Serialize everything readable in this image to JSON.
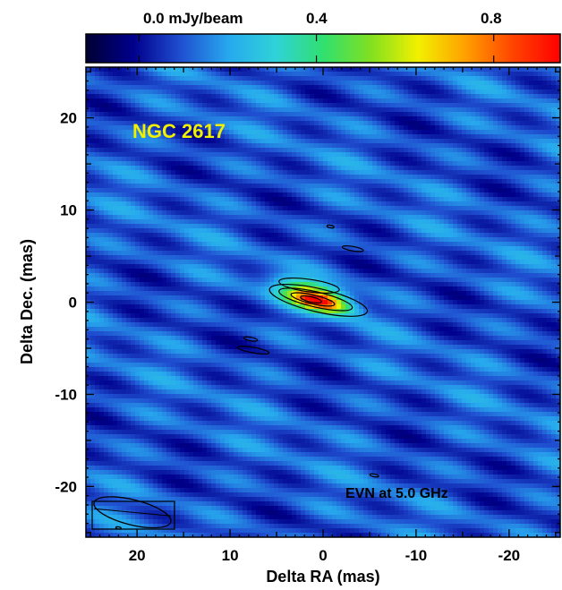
{
  "chart_data": {
    "type": "heatmap",
    "colorbar": {
      "label": "0.0 mJy/beam",
      "tick_labels": [
        "0.4",
        "0.8"
      ],
      "ticks": [
        0.0,
        0.4,
        0.8
      ],
      "range": [
        -0.12,
        0.95
      ],
      "colormap": [
        "#000033",
        "#00008c",
        "#1f4fd0",
        "#27a8ee",
        "#2fd2d8",
        "#30e070",
        "#80e020",
        "#f2f000",
        "#ffa000",
        "#ff4400",
        "#ff0000"
      ]
    },
    "source_label": "NGC 2617",
    "source_label_color": "#f0f000",
    "annotation": "EVN at 5.0 GHz",
    "xlabel": "Delta RA (mas)",
    "ylabel": "Delta Dec. (mas)",
    "xlim": [
      25.5,
      -25.5
    ],
    "ylim": [
      -25.5,
      25.5
    ],
    "x_ticks": [
      20,
      10,
      0,
      -10,
      -20
    ],
    "x_tick_labels": [
      "20",
      "10",
      "0",
      "-10",
      "-20"
    ],
    "y_ticks": [
      20,
      10,
      0,
      -10,
      -20
    ],
    "y_tick_labels": [
      "20",
      "10",
      "0",
      "-10",
      "-20"
    ],
    "contour_color": "#000000",
    "peak": {
      "x": 0.5,
      "y": 0.2,
      "value": 0.95
    },
    "beam": {
      "x": 20.5,
      "y": -22.8,
      "major_mas": 8.5,
      "minor_mas": 0.9,
      "pa_deg": 104
    }
  }
}
